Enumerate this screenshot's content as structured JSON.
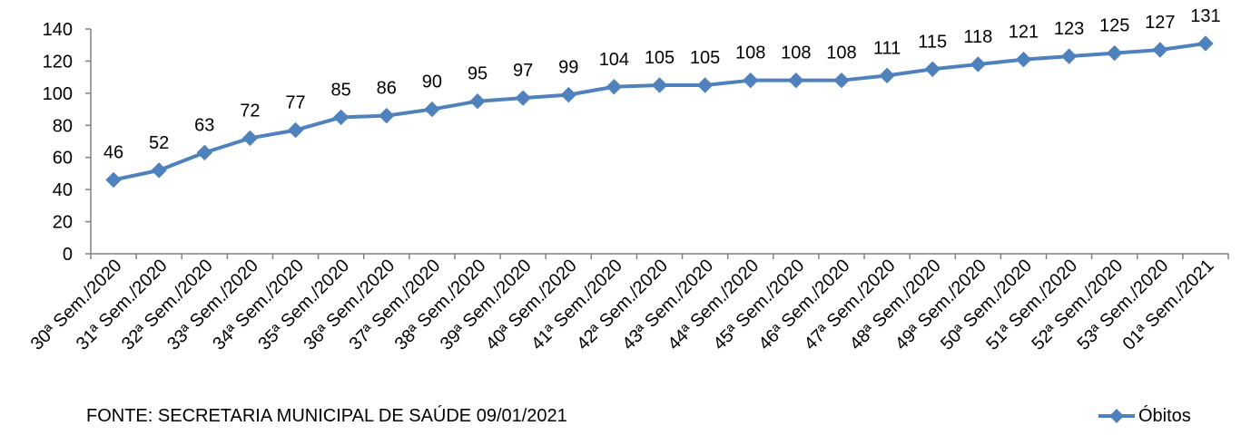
{
  "source_note": "FONTE: SECRETARIA MUNICIPAL DE SAÚDE 09/01/2021",
  "colors": {
    "series": "#4F81BD",
    "axis": "#808080"
  },
  "chart_data": {
    "type": "line",
    "title": "",
    "xlabel": "",
    "ylabel": "",
    "ylim": [
      0,
      140
    ],
    "yticks": [
      0,
      20,
      40,
      60,
      80,
      100,
      120,
      140
    ],
    "grid": false,
    "legend_position": "bottom-right",
    "marker": "diamond",
    "categories": [
      "30ª Sem./2020",
      "31ª Sem./2020",
      "32ª Sem./2020",
      "33ª Sem./2020",
      "34ª Sem./2020",
      "35ª Sem./2020",
      "36ª Sem./2020",
      "37ª Sem./2020",
      "38ª Sem./2020",
      "39ª Sem./2020",
      "40ª Sem./2020",
      "41ª Sem./2020",
      "42ª Sem./2020",
      "43ª Sem./2020",
      "44ª Sem./2020",
      "45ª Sem./2020",
      "46ª Sem./2020",
      "47ª Sem./2020",
      "48ª Sem./2020",
      "49ª Sem./2020",
      "50ª Sem./2020",
      "51ª Sem./2020",
      "52ª Sem./2020",
      "53ª Sem./2020",
      "01ª Sem./2021"
    ],
    "series": [
      {
        "name": "Óbitos",
        "values": [
          46,
          52,
          63,
          72,
          77,
          85,
          86,
          90,
          95,
          97,
          99,
          104,
          105,
          105,
          108,
          108,
          108,
          111,
          115,
          118,
          121,
          123,
          125,
          127,
          131
        ]
      }
    ]
  }
}
